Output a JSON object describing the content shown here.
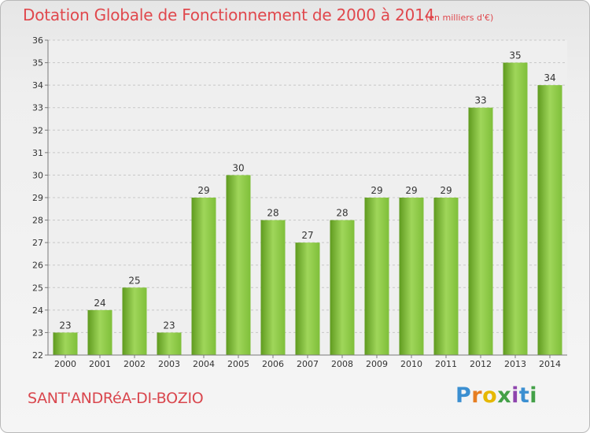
{
  "chart_data": {
    "type": "bar",
    "title": "Dotation Globale de Fonctionnement de 2000 à 2014",
    "unit_note": "(en milliers d'€)",
    "categories": [
      "2000",
      "2001",
      "2002",
      "2003",
      "2004",
      "2005",
      "2006",
      "2007",
      "2008",
      "2009",
      "2010",
      "2011",
      "2012",
      "2013",
      "2014"
    ],
    "values": [
      23,
      24,
      25,
      23,
      29,
      30,
      28,
      27,
      28,
      29,
      29,
      29,
      33,
      35,
      34
    ],
    "ylim": [
      22,
      36
    ],
    "yticks": [
      22,
      23,
      24,
      25,
      26,
      27,
      28,
      29,
      30,
      31,
      32,
      33,
      34,
      35,
      36
    ],
    "grid": true,
    "legend": "none",
    "bar_color": "#7fbf3a",
    "bar_color_light": "#9fd65a",
    "bar_color_dark": "#5f9a1f"
  },
  "footer": {
    "commune": "SANT'ANDRéA-DI-BOZIO",
    "brand": "Proxiti"
  }
}
